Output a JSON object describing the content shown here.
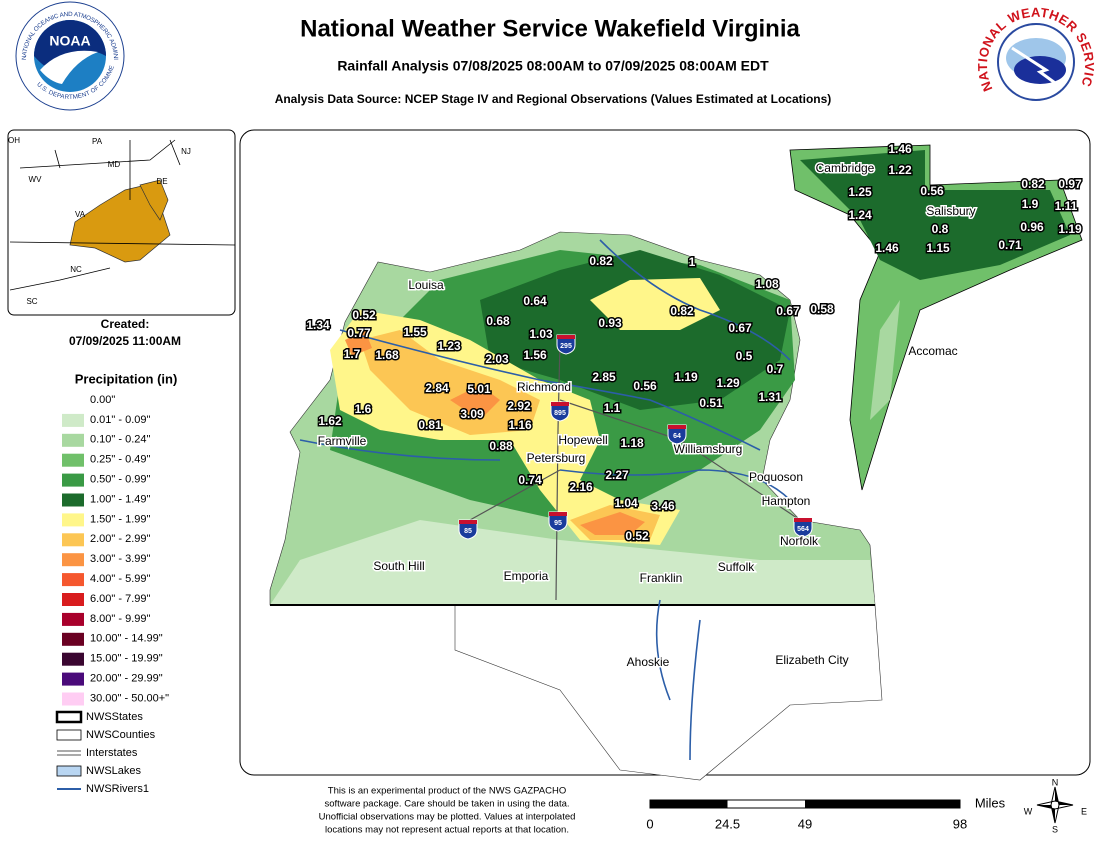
{
  "header": {
    "title": "National Weather Service Wakefield Virginia",
    "subtitle": "Rainfall Analysis 07/08/2025 08:00AM to 07/09/2025 08:00AM EDT",
    "source": "Analysis Data Source: NCEP Stage IV and Regional Observations (Values Estimated at Locations)"
  },
  "noaa": {
    "name": "NOAA",
    "ring_top": "NATIONAL OCEANIC AND ATMOSPHERIC ADMINISTRATION",
    "ring_bottom": "U.S. DEPARTMENT OF COMMERCE"
  },
  "nws": {
    "ring": "NATIONAL WEATHER SERVICE"
  },
  "created": {
    "label": "Created:",
    "date": "07/09/2025 11:00AM"
  },
  "inset": {
    "labels": [
      "OH",
      "PA",
      "NJ",
      "MD",
      "DE",
      "WV",
      "VA",
      "NC",
      "SC"
    ]
  },
  "legend": {
    "title": "Precipitation (in)",
    "items": [
      {
        "label": "0.00\"",
        "color": "#ffffff"
      },
      {
        "label": "0.01\" - 0.09\"",
        "color": "#cfeac8"
      },
      {
        "label": "0.10\" - 0.24\"",
        "color": "#a8d8a0"
      },
      {
        "label": "0.25\" - 0.49\"",
        "color": "#70c06a"
      },
      {
        "label": "0.50\" - 0.99\"",
        "color": "#3a9a45"
      },
      {
        "label": "1.00\" - 1.49\"",
        "color": "#1c6b2c"
      },
      {
        "label": "1.50\" - 1.99\"",
        "color": "#fff68a"
      },
      {
        "label": "2.00\" - 2.99\"",
        "color": "#fcc654"
      },
      {
        "label": "3.00\" - 3.99\"",
        "color": "#fb9443"
      },
      {
        "label": "4.00\" - 5.99\"",
        "color": "#f5572e"
      },
      {
        "label": "6.00\" - 7.99\"",
        "color": "#d81c1e"
      },
      {
        "label": "8.00\" - 9.99\"",
        "color": "#a8002b"
      },
      {
        "label": "10.00\" - 14.99\"",
        "color": "#6a0022"
      },
      {
        "label": "15.00\" - 19.99\"",
        "color": "#3a0630"
      },
      {
        "label": "20.00\" - 29.99\"",
        "color": "#4a0a7a"
      },
      {
        "label": "30.00\" - 50.00+\"",
        "color": "#ffcdf3"
      }
    ]
  },
  "layers": [
    "NWSStates",
    "NWSCounties",
    "Interstates",
    "NWSLakes",
    "NWSRivers1"
  ],
  "disclaimer": [
    "This is an experimental product of the NWS GAZPACHO",
    "software package. Care should be taken in using the data.",
    "Unofficial observations may be plotted. Values at interpolated",
    "locations may not represent actual reports at that location."
  ],
  "scale": {
    "unit": "Miles",
    "ticks": [
      0,
      24.5,
      49,
      98
    ]
  },
  "compass": [
    "N",
    "E",
    "S",
    "W"
  ],
  "cities": [
    "Louisa",
    "Richmond",
    "Farmville",
    "Hopewell",
    "Petersburg",
    "Williamsburg",
    "Poquoson",
    "Hampton",
    "Norfolk",
    "Suffolk",
    "Franklin",
    "Emporia",
    "South Hill",
    "Ahoskie",
    "Elizabeth City",
    "Cambridge",
    "Salisbury",
    "Accomac"
  ],
  "shields": [
    295,
    895,
    64,
    85,
    95,
    564
  ],
  "rainfall": [
    1.46,
    1.22,
    1.25,
    0.56,
    0.82,
    0.97,
    1.24,
    1.9,
    1.11,
    0.8,
    0.96,
    1.19,
    1.46,
    1.15,
    0.71,
    0.82,
    1,
    1.08,
    0.64,
    0.52,
    0.67,
    0.58,
    0.68,
    0.93,
    0.82,
    1.34,
    0.77,
    1.55,
    1.03,
    0.67,
    1.23,
    1.56,
    1.7,
    1.68,
    2.03,
    0.5,
    0.7,
    2.85,
    0.56,
    1.19,
    1.29,
    2.84,
    5.01,
    1.31,
    0.51,
    1.6,
    2.92,
    3.09,
    1.1,
    1.62,
    0.81,
    1.16,
    0.88,
    1.18,
    2.27,
    0.74,
    2.16,
    1.04,
    3.46,
    0.52
  ]
}
